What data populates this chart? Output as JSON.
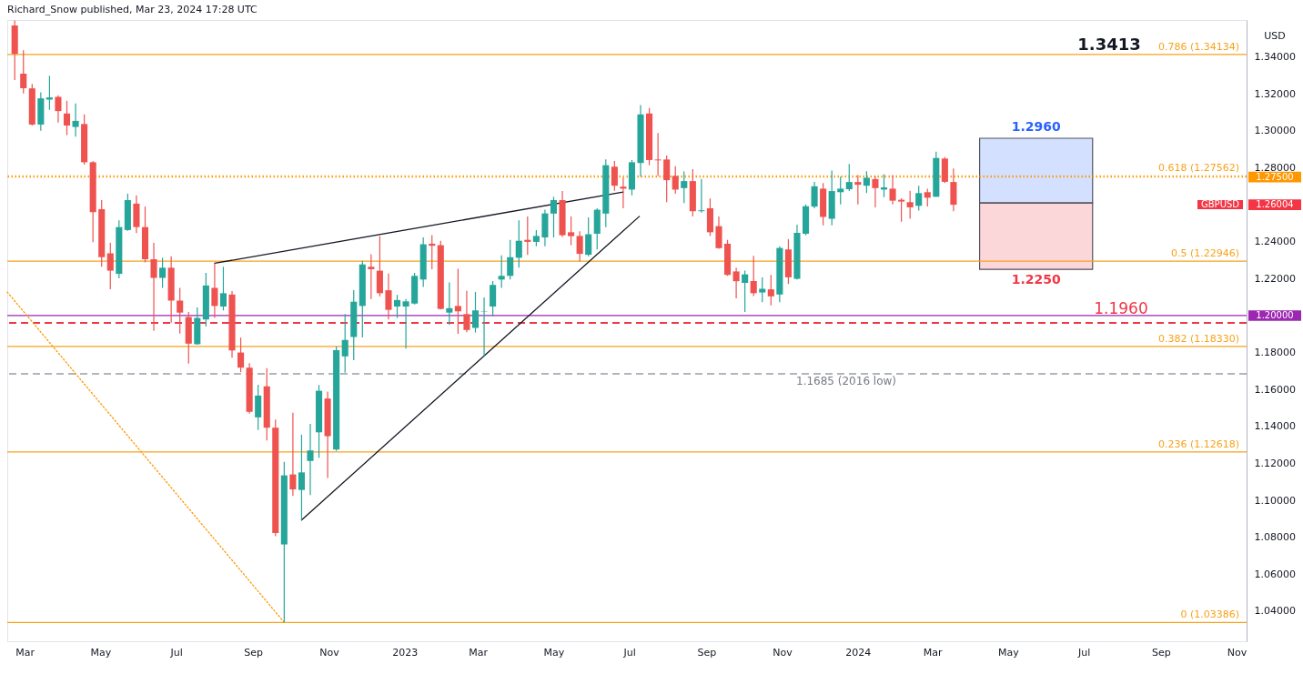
{
  "chart_data": {
    "type": "candlestick",
    "title": "Richard_Snow published, Mar 23, 2024 17:28 UTC",
    "ylabel": "USD",
    "xlim": [
      "2022-02-15",
      "2024-11-09"
    ],
    "ylim": [
      1.0237,
      1.36
    ],
    "xticks": [
      {
        "value": "2022-03-01",
        "label": "Mar"
      },
      {
        "value": "2022-05-01",
        "label": "May"
      },
      {
        "value": "2022-07-01",
        "label": "Jul"
      },
      {
        "value": "2022-09-01",
        "label": "Sep"
      },
      {
        "value": "2022-11-01",
        "label": "Nov"
      },
      {
        "value": "2023-01-01",
        "label": "2023"
      },
      {
        "value": "2023-03-01",
        "label": "Mar"
      },
      {
        "value": "2023-05-01",
        "label": "May"
      },
      {
        "value": "2023-07-01",
        "label": "Jul"
      },
      {
        "value": "2023-09-01",
        "label": "Sep"
      },
      {
        "value": "2023-11-01",
        "label": "Nov"
      },
      {
        "value": "2024-01-01",
        "label": "2024"
      },
      {
        "value": "2024-03-01",
        "label": "Mar"
      },
      {
        "value": "2024-05-01",
        "label": "May"
      },
      {
        "value": "2024-07-01",
        "label": "Jul"
      },
      {
        "value": "2024-09-01",
        "label": "Sep"
      },
      {
        "value": "2024-11-01",
        "label": "Nov"
      }
    ],
    "yticks": [
      {
        "value": 1.04,
        "label": "1.04000"
      },
      {
        "value": 1.06,
        "label": "1.06000"
      },
      {
        "value": 1.08,
        "label": "1.08000"
      },
      {
        "value": 1.1,
        "label": "1.10000"
      },
      {
        "value": 1.12,
        "label": "1.12000"
      },
      {
        "value": 1.14,
        "label": "1.14000"
      },
      {
        "value": 1.16,
        "label": "1.16000"
      },
      {
        "value": 1.18,
        "label": "1.18000"
      },
      {
        "value": 1.2,
        "label": null
      },
      {
        "value": 1.22,
        "label": "1.22000"
      },
      {
        "value": 1.24,
        "label": "1.24000"
      },
      {
        "value": 1.28,
        "label": "1.28000"
      },
      {
        "value": 1.3,
        "label": "1.30000"
      },
      {
        "value": 1.32,
        "label": "1.32000"
      },
      {
        "value": 1.34,
        "label": "1.34000"
      }
    ],
    "x": [
      "2022-02-21",
      "2022-02-28",
      "2022-03-07",
      "2022-03-14",
      "2022-03-21",
      "2022-03-28",
      "2022-04-04",
      "2022-04-11",
      "2022-04-18",
      "2022-04-25",
      "2022-05-02",
      "2022-05-09",
      "2022-05-16",
      "2022-05-23",
      "2022-05-30",
      "2022-06-06",
      "2022-06-13",
      "2022-06-20",
      "2022-06-27",
      "2022-07-04",
      "2022-07-11",
      "2022-07-18",
      "2022-07-25",
      "2022-08-01",
      "2022-08-08",
      "2022-08-15",
      "2022-08-22",
      "2022-08-29",
      "2022-09-05",
      "2022-09-12",
      "2022-09-19",
      "2022-09-26",
      "2022-10-03",
      "2022-10-10",
      "2022-10-17",
      "2022-10-24",
      "2022-10-31",
      "2022-11-07",
      "2022-11-14",
      "2022-11-21",
      "2022-11-28",
      "2022-12-05",
      "2022-12-12",
      "2022-12-19",
      "2022-12-26",
      "2023-01-02",
      "2023-01-09",
      "2023-01-16",
      "2023-01-23",
      "2023-01-30",
      "2023-02-06",
      "2023-02-13",
      "2023-02-20",
      "2023-02-27",
      "2023-03-06",
      "2023-03-13",
      "2023-03-20",
      "2023-03-27",
      "2023-04-03",
      "2023-04-10",
      "2023-04-17",
      "2023-04-24",
      "2023-05-01",
      "2023-05-08",
      "2023-05-15",
      "2023-05-22",
      "2023-05-29",
      "2023-06-05",
      "2023-06-12",
      "2023-06-19",
      "2023-06-26",
      "2023-07-03",
      "2023-07-10",
      "2023-07-17",
      "2023-07-24",
      "2023-07-31",
      "2023-08-07",
      "2023-08-14",
      "2023-08-21",
      "2023-08-28",
      "2023-09-04",
      "2023-09-11",
      "2023-09-18",
      "2023-09-25",
      "2023-10-02",
      "2023-10-09",
      "2023-10-16",
      "2023-10-23",
      "2023-10-30",
      "2023-11-06",
      "2023-11-13",
      "2023-11-20",
      "2023-11-27",
      "2023-12-04",
      "2023-12-11",
      "2023-12-18",
      "2023-12-25",
      "2024-01-01",
      "2024-01-08",
      "2024-01-15",
      "2024-01-22",
      "2024-01-29",
      "2024-02-05",
      "2024-02-12",
      "2024-02-19",
      "2024-02-26",
      "2024-03-04",
      "2024-03-11",
      "2024-03-18"
    ],
    "ohlc": [
      [
        1.357,
        1.3598,
        1.3275,
        1.3417
      ],
      [
        1.3309,
        1.3436,
        1.3202,
        1.3231
      ],
      [
        1.323,
        1.3254,
        1.3029,
        1.3034
      ],
      [
        1.3034,
        1.3208,
        1.3,
        1.3176
      ],
      [
        1.3169,
        1.3298,
        1.3114,
        1.3181
      ],
      [
        1.3184,
        1.3192,
        1.3045,
        1.3107
      ],
      [
        1.3094,
        1.3163,
        1.2977,
        1.3029
      ],
      [
        1.3021,
        1.3148,
        1.2969,
        1.3054
      ],
      [
        1.3037,
        1.3089,
        1.2817,
        1.283
      ],
      [
        1.283,
        1.2837,
        1.2397,
        1.256
      ],
      [
        1.2576,
        1.2625,
        1.2264,
        1.2316
      ],
      [
        1.2337,
        1.2394,
        1.2142,
        1.2243
      ],
      [
        1.2226,
        1.2516,
        1.2202,
        1.2479
      ],
      [
        1.2463,
        1.266,
        1.2459,
        1.2625
      ],
      [
        1.2606,
        1.2651,
        1.2446,
        1.2479
      ],
      [
        1.2479,
        1.259,
        1.2288,
        1.2305
      ],
      [
        1.2305,
        1.2394,
        1.1917,
        1.2204
      ],
      [
        1.2204,
        1.2313,
        1.215,
        1.2259
      ],
      [
        1.2259,
        1.2321,
        1.1962,
        1.2081
      ],
      [
        1.2081,
        1.215,
        1.1902,
        1.2016
      ],
      [
        1.1992,
        1.2019,
        1.174,
        1.1848
      ],
      [
        1.1845,
        1.2044,
        1.1842,
        1.1987
      ],
      [
        1.1979,
        1.2231,
        1.1941,
        1.2163
      ],
      [
        1.215,
        1.2283,
        1.1987,
        1.2052
      ],
      [
        1.2049,
        1.2264,
        1.2028,
        1.2121
      ],
      [
        1.2114,
        1.2133,
        1.1772,
        1.1811
      ],
      [
        1.18,
        1.1881,
        1.1694,
        1.1718
      ],
      [
        1.1718,
        1.1742,
        1.1469,
        1.1479
      ],
      [
        1.1449,
        1.1625,
        1.1381,
        1.1567
      ],
      [
        1.1617,
        1.1715,
        1.1324,
        1.1393
      ],
      [
        1.1393,
        1.1437,
        1.0806,
        1.0823
      ],
      [
        1.0761,
        1.1208,
        1.0339,
        1.1135
      ],
      [
        1.114,
        1.1474,
        1.1023,
        1.1059
      ],
      [
        1.1056,
        1.1355,
        1.0893,
        1.1151
      ],
      [
        1.1213,
        1.1414,
        1.1029,
        1.127
      ],
      [
        1.1368,
        1.1624,
        1.123,
        1.1593
      ],
      [
        1.1551,
        1.1588,
        1.1121,
        1.1347
      ],
      [
        1.1275,
        1.1832,
        1.1267,
        1.1813
      ],
      [
        1.1779,
        1.2008,
        1.1691,
        1.1868
      ],
      [
        1.1884,
        1.2137,
        1.1759,
        1.2075
      ],
      [
        1.2052,
        1.2296,
        1.1881,
        1.2277
      ],
      [
        1.2264,
        1.2332,
        1.2089,
        1.2251
      ],
      [
        1.2243,
        1.243,
        1.2104,
        1.2121
      ],
      [
        1.2137,
        1.2228,
        1.1979,
        1.2031
      ],
      [
        1.2049,
        1.2112,
        1.1987,
        1.2084
      ],
      [
        1.2049,
        1.2089,
        1.1821,
        1.2077
      ],
      [
        1.2065,
        1.2231,
        1.206,
        1.2215
      ],
      [
        1.2195,
        1.2423,
        1.2155,
        1.2386
      ],
      [
        1.2389,
        1.2435,
        1.2251,
        1.2378
      ],
      [
        1.2381,
        1.2405,
        1.2033,
        1.2036
      ],
      [
        1.2016,
        1.2179,
        1.1951,
        1.204
      ],
      [
        1.2052,
        1.2253,
        1.1901,
        1.2023
      ],
      [
        1.2008,
        1.2134,
        1.191,
        1.1922
      ],
      [
        1.1933,
        1.2128,
        1.1908,
        1.2028
      ],
      [
        1.202,
        1.2098,
        1.1779,
        1.2022
      ],
      [
        1.2049,
        1.2187,
        1.1996,
        1.2166
      ],
      [
        1.2195,
        1.2326,
        1.215,
        1.2215
      ],
      [
        1.2215,
        1.241,
        1.2195,
        1.2316
      ],
      [
        1.2313,
        1.2516,
        1.226,
        1.2405
      ],
      [
        1.241,
        1.2537,
        1.2329,
        1.2399
      ],
      [
        1.2399,
        1.2463,
        1.2375,
        1.2431
      ],
      [
        1.2423,
        1.2573,
        1.2375,
        1.2553
      ],
      [
        1.2552,
        1.2643,
        1.2423,
        1.2625
      ],
      [
        1.2625,
        1.2674,
        1.2426,
        1.2435
      ],
      [
        1.2451,
        1.2537,
        1.2381,
        1.243
      ],
      [
        1.2431,
        1.2456,
        1.2293,
        1.2334
      ],
      [
        1.2329,
        1.2532,
        1.2321,
        1.244
      ],
      [
        1.2443,
        1.2581,
        1.2358,
        1.2573
      ],
      [
        1.2552,
        1.2845,
        1.2479,
        1.2814
      ],
      [
        1.2806,
        1.2837,
        1.2676,
        1.2703
      ],
      [
        1.2698,
        1.2747,
        1.2581,
        1.2687
      ],
      [
        1.2682,
        1.2842,
        1.2651,
        1.283
      ],
      [
        1.2826,
        1.314,
        1.2752,
        1.3089
      ],
      [
        1.3094,
        1.3124,
        1.2814,
        1.2842
      ],
      [
        1.2845,
        1.2988,
        1.2756,
        1.284
      ],
      [
        1.2845,
        1.2866,
        1.2614,
        1.2733
      ],
      [
        1.2756,
        1.2809,
        1.2659,
        1.2682
      ],
      [
        1.269,
        1.278,
        1.2609,
        1.2728
      ],
      [
        1.2728,
        1.2793,
        1.2537,
        1.2565
      ],
      [
        1.2565,
        1.2739,
        1.2557,
        1.257
      ],
      [
        1.2581,
        1.2634,
        1.2431,
        1.2451
      ],
      [
        1.2484,
        1.2537,
        1.2362,
        1.2365
      ],
      [
        1.2389,
        1.241,
        1.2215,
        1.222
      ],
      [
        1.2239,
        1.2259,
        1.2093,
        1.2186
      ],
      [
        1.2177,
        1.2243,
        1.202,
        1.2223
      ],
      [
        1.2187,
        1.2324,
        1.2106,
        1.2121
      ],
      [
        1.2125,
        1.2207,
        1.2072,
        1.2145
      ],
      [
        1.2142,
        1.222,
        1.2055,
        1.2104
      ],
      [
        1.2114,
        1.2375,
        1.2072,
        1.2366
      ],
      [
        1.2358,
        1.2414,
        1.2171,
        1.2207
      ],
      [
        1.2199,
        1.2492,
        1.2195,
        1.2448
      ],
      [
        1.2443,
        1.2602,
        1.2435,
        1.2592
      ],
      [
        1.259,
        1.2723,
        1.2581,
        1.27
      ],
      [
        1.2687,
        1.2717,
        1.2488,
        1.2534
      ],
      [
        1.2524,
        1.2785,
        1.2488,
        1.2674
      ],
      [
        1.2668,
        1.2752,
        1.2602,
        1.2687
      ],
      [
        1.2684,
        1.2821,
        1.2674,
        1.2723
      ],
      [
        1.2723,
        1.2761,
        1.2602,
        1.2708
      ],
      [
        1.2703,
        1.2782,
        1.2663,
        1.2746
      ],
      [
        1.2739,
        1.2756,
        1.2586,
        1.269
      ],
      [
        1.2682,
        1.2765,
        1.2641,
        1.2694
      ],
      [
        1.2687,
        1.2761,
        1.2602,
        1.2622
      ],
      [
        1.2627,
        1.2635,
        1.2508,
        1.2617
      ],
      [
        1.2614,
        1.2676,
        1.2524,
        1.2586
      ],
      [
        1.2594,
        1.2703,
        1.2568,
        1.2663
      ],
      [
        1.2668,
        1.2687,
        1.259,
        1.2638
      ],
      [
        1.2643,
        1.2887,
        1.2643,
        1.2853
      ],
      [
        1.285,
        1.2858,
        1.2717,
        1.2724
      ],
      [
        1.2723,
        1.2796,
        1.2565,
        1.26
      ]
    ],
    "colors": [
      "#ef5350",
      "#ef5350",
      "#ef5350",
      "#26a69a",
      "#26a69a",
      "#ef5350",
      "#ef5350",
      "#26a69a",
      "#ef5350",
      "#ef5350",
      "#ef5350",
      "#ef5350",
      "#26a69a",
      "#26a69a",
      "#ef5350",
      "#ef5350",
      "#ef5350",
      "#26a69a",
      "#ef5350",
      "#ef5350",
      "#ef5350",
      "#26a69a",
      "#26a69a",
      "#ef5350",
      "#26a69a",
      "#ef5350",
      "#ef5350",
      "#ef5350",
      "#26a69a",
      "#ef5350",
      "#ef5350",
      "#26a69a",
      "#ef5350",
      "#26a69a",
      "#26a69a",
      "#26a69a",
      "#ef5350",
      "#26a69a",
      "#26a69a",
      "#26a69a",
      "#26a69a",
      "#ef5350",
      "#ef5350",
      "#ef5350",
      "#26a69a",
      "#26a69a",
      "#26a69a",
      "#26a69a",
      "#ef5350",
      "#ef5350",
      "#26a69a",
      "#ef5350",
      "#ef5350",
      "#26a69a",
      "#26a69a",
      "#26a69a",
      "#26a69a",
      "#26a69a",
      "#26a69a",
      "#ef5350",
      "#26a69a",
      "#26a69a",
      "#26a69a",
      "#ef5350",
      "#ef5350",
      "#ef5350",
      "#26a69a",
      "#26a69a",
      "#26a69a",
      "#ef5350",
      "#ef5350",
      "#26a69a",
      "#26a69a",
      "#ef5350",
      "#ef5350",
      "#ef5350",
      "#ef5350",
      "#26a69a",
      "#ef5350",
      "#26a69a",
      "#ef5350",
      "#ef5350",
      "#ef5350",
      "#ef5350",
      "#26a69a",
      "#ef5350",
      "#26a69a",
      "#ef5350",
      "#26a69a",
      "#ef5350",
      "#26a69a",
      "#26a69a",
      "#26a69a",
      "#ef5350",
      "#26a69a",
      "#26a69a",
      "#26a69a",
      "#ef5350",
      "#26a69a",
      "#ef5350",
      "#26a69a",
      "#ef5350",
      "#ef5350",
      "#ef5350",
      "#26a69a",
      "#ef5350",
      "#26a69a",
      "#ef5350",
      "#ef5350"
    ],
    "series": [
      {
        "type": "line",
        "x": [
          "2022-08-01",
          "2023-06-26"
        ],
        "values": [
          1.2283,
          1.2669
        ],
        "color": "#131722",
        "line_style": "solid"
      },
      {
        "type": "line",
        "x": [
          "2022-10-10",
          "2023-07-09"
        ],
        "values": [
          1.0893,
          1.2537
        ],
        "color": "#131722",
        "line_style": "solid"
      },
      {
        "type": "line",
        "x": [
          "2022-02-15",
          "2022-09-26"
        ],
        "values": [
          1.2127,
          1.0339
        ],
        "color": "#ff9800",
        "line_style": "dotted"
      }
    ],
    "ref_lines": [
      {
        "axis": "y",
        "value": 1.34134,
        "label": "0.786 (1.34134)",
        "color": "#f7a21b",
        "line_style": "solid"
      },
      {
        "axis": "y",
        "value": 1.27562,
        "label": "0.618 (1.27562)",
        "color": "#f7a21b",
        "line_style": "dotted"
      },
      {
        "axis": "y",
        "value": 1.275,
        "label": "1.27500",
        "color": "#ff9800",
        "line_style": "dotted"
      },
      {
        "axis": "y",
        "value": 1.22946,
        "label": "0.5 (1.22946)",
        "color": "#f7a21b",
        "line_style": "solid"
      },
      {
        "axis": "y",
        "value": 1.2,
        "label": "1.20000",
        "color": "#9c27b0",
        "line_style": "solid"
      },
      {
        "axis": "y",
        "value": 1.196,
        "label": "1.1960",
        "color": "#f23645",
        "line_style": "dashed"
      },
      {
        "axis": "y",
        "value": 1.1833,
        "label": "0.382 (1.18330)",
        "color": "#f7a21b",
        "line_style": "solid"
      },
      {
        "axis": "y",
        "value": 1.1685,
        "label": "1.1685 (2016 low)",
        "color": "#b2b5be",
        "line_style": "dashed"
      },
      {
        "axis": "y",
        "value": 1.12618,
        "label": "0.236 (1.12618)",
        "color": "#f7a21b",
        "line_style": "solid"
      },
      {
        "axis": "y",
        "value": 1.03386,
        "label": "0 (1.03386)",
        "color": "#f7a21b",
        "line_style": "solid"
      }
    ],
    "bands": [
      {
        "axis": "y",
        "from": 1.261,
        "to": 1.296,
        "label": "1.2960",
        "color": "#2962ff"
      },
      {
        "axis": "y",
        "from": 1.225,
        "to": 1.261,
        "label": "1.2250",
        "color": "#f23645"
      }
    ],
    "annotations": [
      {
        "text": "1.3413",
        "y": 1.3413
      },
      "GBPUSD",
      "1.26004"
    ]
  }
}
